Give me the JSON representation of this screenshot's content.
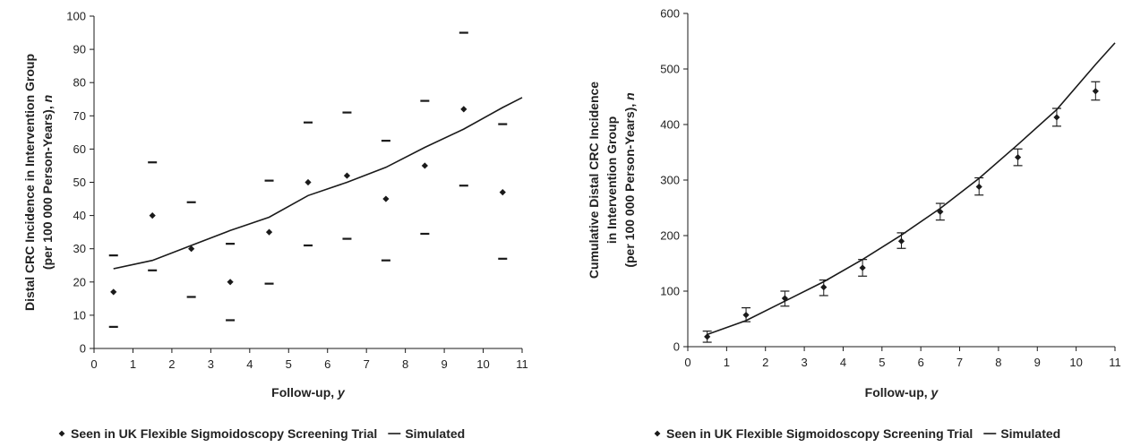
{
  "chart_data": [
    {
      "type": "scatter",
      "xlabel": "Follow-up, y",
      "ylabel_lines": [
        "Distal CRC Incidence in Intervention Group",
        "(per 100 000 Person-Years), n"
      ],
      "xlim": [
        0,
        11
      ],
      "ylim": [
        0,
        100
      ],
      "x_ticks": [
        0,
        1,
        2,
        3,
        4,
        5,
        6,
        7,
        8,
        9,
        10,
        11
      ],
      "y_ticks": [
        0,
        10,
        20,
        30,
        40,
        50,
        60,
        70,
        80,
        90,
        100
      ],
      "series": [
        {
          "name": "Seen in UK Flexible Sigmoidoscopy Screening Trial",
          "type": "scatter",
          "x": [
            0.5,
            1.5,
            2.5,
            3.5,
            4.5,
            5.5,
            6.5,
            7.5,
            8.5,
            9.5,
            10.5
          ],
          "y": [
            17,
            40,
            30,
            20,
            35,
            50,
            52,
            45,
            55,
            72,
            47
          ],
          "ci_low": [
            6.5,
            23.5,
            15.5,
            8.5,
            19.5,
            31,
            33,
            26.5,
            34.5,
            49,
            27
          ],
          "ci_high": [
            28,
            56,
            44,
            31.5,
            50.5,
            68,
            71,
            62.5,
            74.5,
            95,
            67.5
          ]
        },
        {
          "name": "Simulated",
          "type": "line",
          "x": [
            0.5,
            1.5,
            2.5,
            3.5,
            4.5,
            5.5,
            6.5,
            7.5,
            8.5,
            9.5,
            10.5,
            11
          ],
          "y": [
            24,
            26.5,
            31,
            35.5,
            39.5,
            46,
            50,
            54.5,
            60.5,
            66,
            72.5,
            75.5
          ]
        }
      ],
      "legend": {
        "observed_label": "Seen in UK Flexible Sigmoidoscopy Screening Trial",
        "simulated_label": "Simulated",
        "placement": "bottom"
      },
      "style": {
        "ci_style": "floating-dashes"
      }
    },
    {
      "type": "scatter",
      "xlabel": "Follow-up, y",
      "ylabel_lines": [
        "Cumulative Distal CRC Incidence",
        "in Intervention Group",
        "(per 100 000 Person-Years), n"
      ],
      "xlim": [
        0,
        11
      ],
      "ylim": [
        0,
        600
      ],
      "x_ticks": [
        0,
        1,
        2,
        3,
        4,
        5,
        6,
        7,
        8,
        9,
        10,
        11
      ],
      "y_ticks": [
        0,
        100,
        200,
        300,
        400,
        500,
        600
      ],
      "series": [
        {
          "name": "Seen in UK Flexible Sigmoidoscopy Screening Trial",
          "type": "scatter",
          "x": [
            0.5,
            1.5,
            2.5,
            3.5,
            4.5,
            5.5,
            6.5,
            7.5,
            8.5,
            9.5,
            10.5
          ],
          "y": [
            18,
            57,
            87,
            107,
            142,
            190,
            243,
            288,
            341,
            413,
            460
          ],
          "ci_low": [
            8,
            45,
            73,
            92,
            127,
            177,
            228,
            273,
            326,
            397,
            444
          ],
          "ci_high": [
            28,
            70,
            100,
            120,
            157,
            205,
            258,
            304,
            356,
            429,
            477
          ]
        },
        {
          "name": "Simulated",
          "type": "line",
          "x": [
            0.5,
            1.5,
            2.5,
            3.5,
            4.5,
            5.5,
            6.5,
            7.5,
            8.5,
            9.5,
            10.5,
            11
          ],
          "y": [
            22,
            47,
            82,
            117,
            157,
            201,
            249,
            303,
            364,
            427,
            508,
            547
          ]
        }
      ],
      "legend": {
        "observed_label": "Seen in UK Flexible Sigmoidoscopy Screening Trial",
        "simulated_label": "Simulated",
        "placement": "bottom"
      },
      "style": {
        "ci_style": "error-bars"
      }
    }
  ],
  "colors": {
    "ink": "#1a1a1a"
  }
}
